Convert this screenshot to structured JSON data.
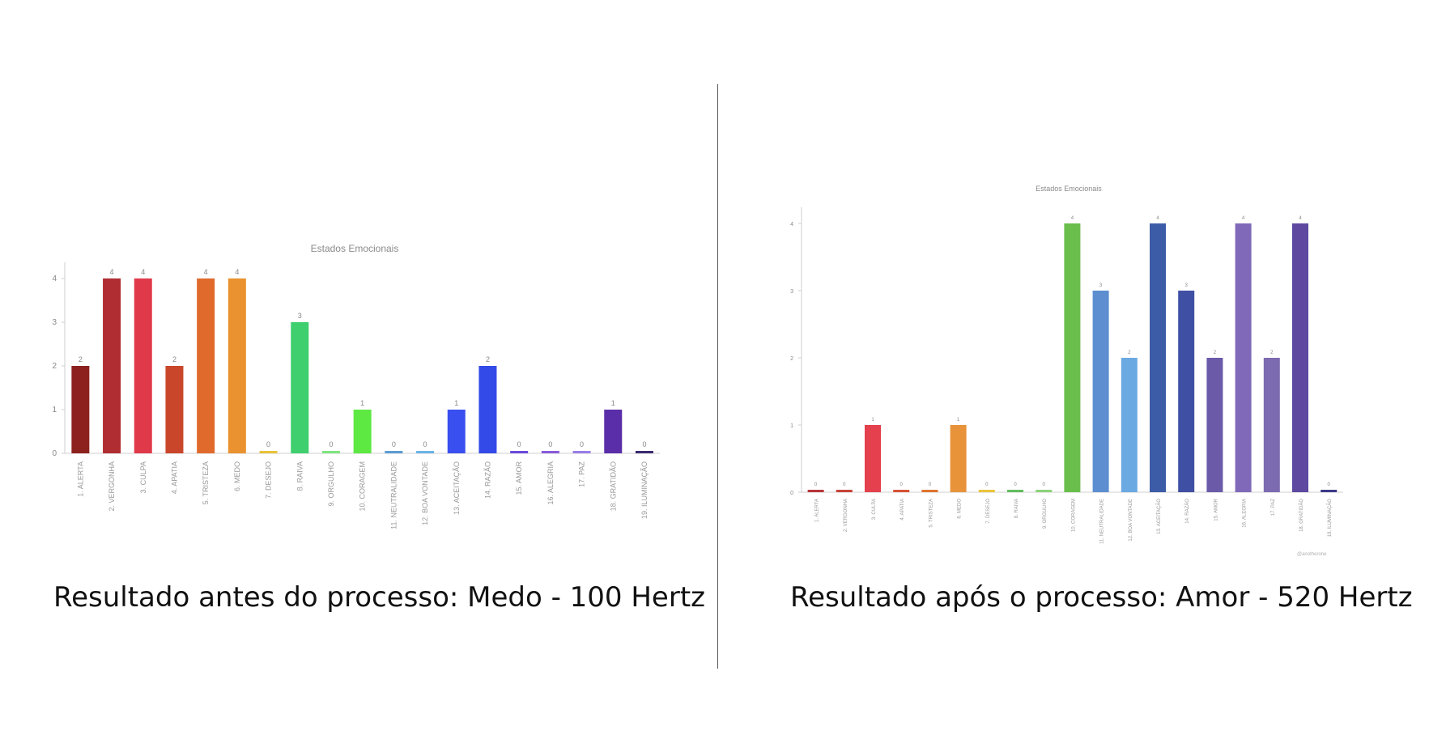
{
  "captions": {
    "left": "Resultado antes do processo: Medo - 100 Hertz",
    "right": "Resultado após o processo: Amor - 520 Hertz"
  },
  "colors": {
    "bars": [
      "#8c211d",
      "#b02d31",
      "#e0394a",
      "#c9462a",
      "#e06a2c",
      "#ea922f",
      "#e9c23a",
      "#3fcf6e",
      "#7ee67e",
      "#5de842",
      "#5b9bd5",
      "#6ab3e6",
      "#3a4ff0",
      "#3349e8",
      "#6a4bdb",
      "#8a5bdb",
      "#9a7de8",
      "#5a2ea8",
      "#3a2a70"
    ],
    "bars_right": [
      "#b8353a",
      "#c84338",
      "#e5404e",
      "#d65236",
      "#e07330",
      "#e8933a",
      "#ebc43a",
      "#63bd5e",
      "#8cd37a",
      "#6abe4c",
      "#5c8ed0",
      "#6ba9e2",
      "#3d5ca8",
      "#3f4fa3",
      "#6a5aa8",
      "#7f69b8",
      "#7c6bb0",
      "#5e48a0",
      "#3c3a88"
    ]
  },
  "watermark": "@anotherone",
  "chart_data": [
    {
      "type": "bar",
      "title": "Estados Emocionais",
      "categories": [
        "1. ALERTA",
        "2. VERGONHA",
        "3. CULPA",
        "4. APATIA",
        "5. TRISTEZA",
        "6. MEDO",
        "7. DESEJO",
        "8. RAIVA",
        "9. ORGULHO",
        "10. CORAGEM",
        "11. NEUTRALIDADE",
        "12. BOA VONTADE",
        "13. ACEITAÇÃO",
        "14. RAZÃO",
        "15. AMOR",
        "16. ALEGRIA",
        "17. PAZ",
        "18. GRATIDÃO",
        "19. ILUMINAÇÃO"
      ],
      "values": [
        2,
        4,
        4,
        2,
        4,
        4,
        0,
        3,
        0,
        1,
        0,
        0,
        1,
        2,
        0,
        0,
        0,
        1,
        0
      ],
      "ylim": [
        0,
        4
      ],
      "yticks": [
        "0",
        "1",
        "2",
        "3",
        "4"
      ],
      "grid": false
    },
    {
      "type": "bar",
      "title": "Estados Emocionais",
      "categories": [
        "1. ALERTA",
        "2. VERGONHA",
        "3. CULPA",
        "4. APATIA",
        "5. TRISTEZA",
        "6. MEDO",
        "7. DESEJO",
        "8. RAIVA",
        "9. ORGULHO",
        "10. CORAGEM",
        "11. NEUTRALIDADE",
        "12. BOA VONTADE",
        "13. ACEITAÇÃO",
        "14. RAZÃO",
        "15. AMOR",
        "16. ALEGRIA",
        "17. PAZ",
        "18. GRATIDÃO",
        "19. ILUMINAÇÃO"
      ],
      "values": [
        0,
        0,
        1,
        0,
        0,
        1,
        0,
        0,
        0,
        4,
        3,
        2,
        4,
        3,
        2,
        4,
        2,
        4,
        0
      ],
      "ylim": [
        0,
        4
      ],
      "yticks": [
        "0",
        "1",
        "2",
        "3",
        "4"
      ],
      "grid": false
    }
  ]
}
